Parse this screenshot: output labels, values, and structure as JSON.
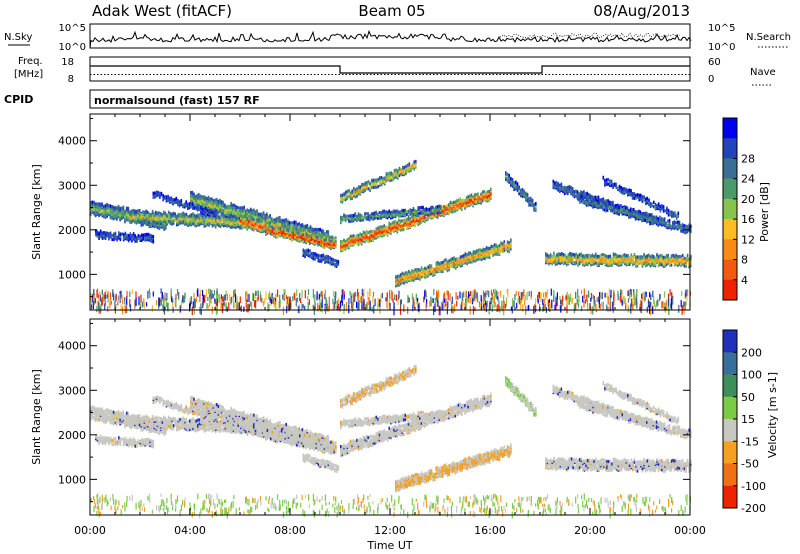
{
  "header": {
    "station": "Adak West (fitACF)",
    "beam": "Beam 05",
    "date": "08/Aug/2013"
  },
  "top_panels": {
    "nsky_label": "N.Sky",
    "nsky_ticks": [
      "10^5",
      "10^0"
    ],
    "nsearch_label": "N.Search",
    "nsearch_ticks": [
      "10^5",
      "10^0"
    ],
    "freq_label_line1": "Freq.",
    "freq_label_line2": "[MHz]",
    "freq_ticks": [
      "18",
      "8"
    ],
    "nave_label": "Nave",
    "nave_ticks": [
      "60",
      "0"
    ],
    "cpid_label": "CPID",
    "cpid_text": "normalsound (fast) 157 RF"
  },
  "chart_data": [
    {
      "type": "heatmap",
      "name": "power",
      "ylabel": "Slant Range [km]",
      "yticks": [
        "1000",
        "2000",
        "3000",
        "4000"
      ],
      "ylim": [
        200,
        4600
      ],
      "xlim": [
        0,
        24
      ],
      "colorbar_label": "Power [dB]",
      "colorbar_ticks": [
        "4",
        "8",
        "12",
        "16",
        "20",
        "24",
        "28"
      ],
      "colors": [
        "#0000ee",
        "#2244bb",
        "#3a6e95",
        "#4a9a6c",
        "#88c34e",
        "#ffbb22",
        "#f88a15",
        "#f25a10",
        "#ee2200"
      ]
    },
    {
      "type": "heatmap",
      "name": "velocity",
      "ylabel": "Slant Range [km]",
      "yticks": [
        "1000",
        "2000",
        "3000",
        "4000"
      ],
      "ylim": [
        200,
        4600
      ],
      "xlim": [
        0,
        24
      ],
      "colorbar_label": "Velocity [m s-1]",
      "colorbar_ticks": [
        "200",
        "100",
        "50",
        "15",
        "-15",
        "-50",
        "-100",
        "-200"
      ],
      "colors": [
        "#2030bb",
        "#3a6e9a",
        "#3c8f5a",
        "#7acc44",
        "#c8c8c2",
        "#f5a020",
        "#f07018",
        "#ee2200"
      ]
    }
  ],
  "xaxis": {
    "ticks": [
      "00:00",
      "04:00",
      "08:00",
      "12:00",
      "16:00",
      "20:00",
      "00:00"
    ],
    "label": "Time UT"
  }
}
